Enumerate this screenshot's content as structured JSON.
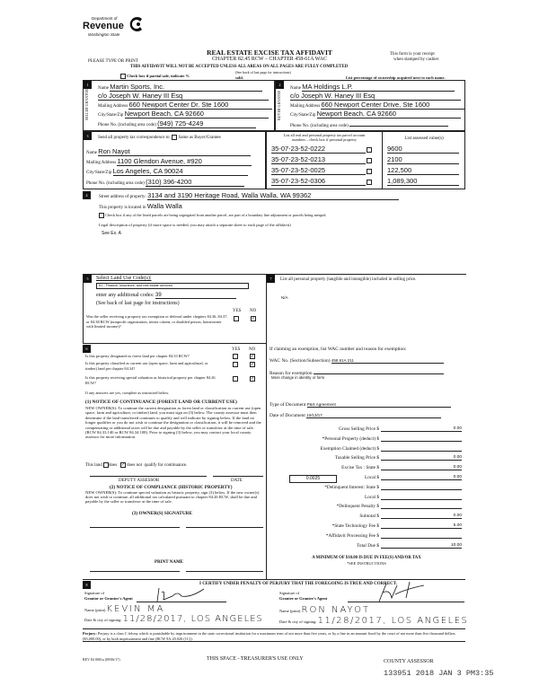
{
  "header": {
    "logo_line1": "Department of",
    "logo_line2": "Revenue",
    "logo_line3": "Washington State",
    "title": "REAL ESTATE EXCISE TAX AFFIDAVIT",
    "chapter": "CHAPTER 82.45 RCW – CHAPTER 458-61A WAC",
    "please": "PLEASE TYPE OR PRINT",
    "receipt1": "This form is your receipt",
    "receipt2": "when stamped by cashier",
    "warning": "THIS AFFIDAVIT WILL NOT BE ACCEPTED UNLESS ALL AREAS ON ALL PAGES ARE FULLY COMPLETED",
    "see_back": "(See back of last page for instructions)",
    "partial": "Check box if partial sale, indicate %",
    "sold": "sold.",
    "ownership": "List percentage of ownership acquired next to each name."
  },
  "seller": {
    "label": "SELLER GRANTOR",
    "name_label": "Name",
    "name": "Martin Sports, Inc.",
    "co": "c/o Joseph W. Haney III Esq",
    "addr_label": "Mailing Address",
    "addr": "660 Newport Center Dr. Ste 1600",
    "city_label": "City/State/Zip",
    "city": "Newport Beach, CA 92660",
    "phone_label": "Phone No. (including area code)",
    "phone": "(949) 725-4249"
  },
  "buyer": {
    "label": "BUYER GRANTEE",
    "name_label": "Name",
    "name": "MA Holdings L.P.",
    "co": "c/o Joseph W. Haney III Esq",
    "addr_label": "Mailing Address",
    "addr": "660 Newport Center Drive, Ste 1600",
    "city_label": "City/State/Zip",
    "city": "Newport Beach, CA 92660",
    "phone_label": "Phone No. (including area code)",
    "phone": ""
  },
  "tax_corr": {
    "label": "Send all property tax correspondence to:",
    "same": "Same as Buyer/Grantee",
    "name_label": "Name",
    "name": "Ron Nayot",
    "addr_label": "Mailing Address",
    "addr": "1100 Glendon Avenue, #920",
    "city_label": "City/State/Zip",
    "city": "Los Angeles, CA 90024",
    "phone_label": "Phone No. (including area code)",
    "phone": "(310) 396-4200"
  },
  "parcels": {
    "header1": "List all real and personal property tax parcel account",
    "header2": "numbers – check box if personal property",
    "value_header": "List assessed value(s)",
    "rows": [
      {
        "parcel": "35-07-23-52-0222",
        "value": "9600"
      },
      {
        "parcel": "35-07-23-52-0213",
        "value": "2100"
      },
      {
        "parcel": "35-07-23-52-0025",
        "value": "122,500"
      },
      {
        "parcel": "35-07-23-52-0306",
        "value": "1,089,300"
      }
    ]
  },
  "property": {
    "street_label": "Street address of property:",
    "street": "3134 and 3190 Heritage Road, Walla Walla, WA 99362",
    "located_label": "This property is located in",
    "located": "Walla Walla",
    "segregated": "Check box if any of the listed parcels are being segregated from another parcel, are part of a boundary line adjustment or parcels being merged.",
    "legal_label": "Legal description of property (if more space is needed, you may attach a separate sheet to each page of the affidavit)",
    "legal": "See Ex. A"
  },
  "land_use": {
    "label": "Select Land Use Code(s):",
    "code": "61 - Finance, insurance, and real estate services",
    "additional_label": "enter any additional codes:",
    "additional": "39",
    "see_back": "(See back of last page for instructions)",
    "yes": "YES",
    "no": "NO",
    "q": "Was the seller receiving a property tax exemption or deferral under chapters 84.36, 84.37, or 84.38 RCW (nonprofit organization, senior citizen, or disabled person, homeowner with limited income)?"
  },
  "section6": {
    "q1": "Is this property designated as forest land per chapter 84.33 RCW?",
    "q2": "Is this property classified as current use (open space, farm and agricultural, or timber) land per chapter 84.34?",
    "q3": "Is this property receiving special valuation as historical property per chapter 84.26 RCW?",
    "if_yes": "If any answers are yes, complete as instructed below.",
    "n1_title": "(1) NOTICE OF CONTINUANCE (FOREST LAND OR CURRENT USE)",
    "n1_text": "NEW OWNER(S): To continue the current designation as forest land or classification as current use (open space, farm and agriculture, or timber) land, you must sign on (3) below. The county assessor must then determine if the land transferred continues to qualify and will indicate by signing below. If the land no longer qualifies or you do not wish to continue the designation or classification, it will be removed and the compensating or additional taxes will be due and payable by the seller or transferor at the time of sale. (RCW 84.33.140 or RCW 84.34.108). Prior to signing (3) below, you may contact your local county assessor for more information.",
    "this_land": "This land",
    "does": "does",
    "does_not": "does not",
    "qualify": "qualify for continuance.",
    "deputy": "DEPUTY ASSESSOR",
    "date": "DATE",
    "n2_title": "(2) NOTICE OF COMPLIANCE (HISTORIC PROPERTY)",
    "n2_text": "NEW OWNER(S): To continue special valuation as historic property, sign (3) below. If the new owner(s) does not wish to continue, all additional tax calculated pursuant to chapter 84.26 RCW, shall be due and payable by the seller or transferor at the time of sale.",
    "n3_title": "(3) OWNER(S) SIGNATURE",
    "print_name": "PRINT NAME"
  },
  "section7": {
    "label": "List all personal property (tangible and intangible) included in selling price.",
    "value": "N/A",
    "exemption_label": "If claiming an exemption, list WAC number and reason for exemption:",
    "wac_label": "WAC No. (Section/Subsection)",
    "wac": "458 61A 211",
    "reason_label": "Reason for exemption",
    "reason": "Mere change in identity or form",
    "doc_type_label": "Type of Document",
    "doc_type": "P&S Agreement",
    "doc_date_label": "Date of Document",
    "doc_date": "10/13/17"
  },
  "fees": {
    "rows": [
      {
        "label": "Gross Selling Price $",
        "value": "0.00"
      },
      {
        "label": "*Personal Property (deduct) $",
        "value": ""
      },
      {
        "label": "Exemption Claimed (deduct) $",
        "value": ""
      },
      {
        "label": "Taxable Selling Price $",
        "value": "0.00"
      },
      {
        "label": "Excise Tax : State $",
        "value": "0.00"
      },
      {
        "label": "Local $",
        "value": "0.00"
      },
      {
        "label": "*Delinquent Interest: State $",
        "value": ""
      },
      {
        "label": "Local $",
        "value": ""
      },
      {
        "label": "*Delinquent Penalty $",
        "value": ""
      },
      {
        "label": "Subtotal $",
        "value": "0.00"
      },
      {
        "label": "*State Technology Fee $",
        "value": "5.00"
      },
      {
        "label": "*Affidavit Processing Fee $",
        "value": ""
      },
      {
        "label": "Total Due $",
        "value": "10.00"
      }
    ],
    "local_rate": "0.0025",
    "minimum": "A MINIMUM OF $10.00 IS DUE IN FEE(S) AND/OR TAX",
    "see_instr": "*SEE INSTRUCTIONS"
  },
  "certify": {
    "title": "I CERTIFY UNDER PENALTY OF PERJURY THAT THE FOREGOING IS TRUE AND CORRECT.",
    "sig_grantor_label1": "Signature of",
    "sig_grantor_label2": "Grantor or Grantor's Agent",
    "sig_grantee_label2": "Grantee or Grantee's Agent",
    "name_label": "Name (print)",
    "grantor_name": "KEVIN MA",
    "grantee_name": "RON NAYOT",
    "date_label": "Date & city of signing:",
    "grantor_date": "11/28/2017, LOS ANGELES",
    "grantee_date": "11/28/2017, LOS ANGELES"
  },
  "footer": {
    "perjury_label": "Perjury:",
    "perjury": "Perjury is a class C felony which is punishable by imprisonment in the state correctional institution for a maximum term of not more than five years, or by a fine in an amount fixed by the court of not more than five thousand dollars ($5,000.00), or by both imprisonment and fine (RCW 9A.20.020 (1C)).",
    "rev": "REV 84 0001a (09/06/17)",
    "treasurer": "THIS SPACE - TREASURER'S USE ONLY",
    "assessor": "COUNTY ASSESSOR",
    "stamp": "133951 2018 JAN 3 PM3:35"
  }
}
